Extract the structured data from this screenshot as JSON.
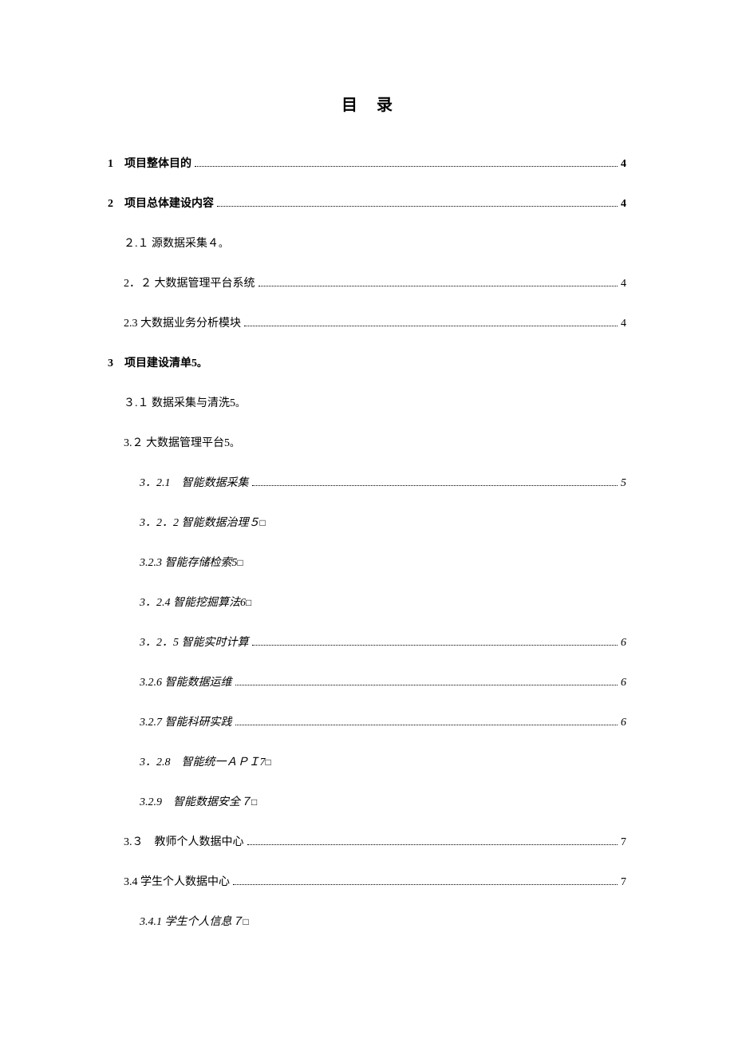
{
  "title": "目录",
  "entries": [
    {
      "level": 1,
      "bold": true,
      "italic": false,
      "label": "1　项目整体目的 ",
      "page": " 4",
      "leader": true
    },
    {
      "level": 1,
      "bold": true,
      "italic": false,
      "label": "2　项目总体建设内容 ",
      "page": "4",
      "leader": true
    },
    {
      "level": 2,
      "bold": false,
      "italic": false,
      "label": "２.１  源数据采集４",
      "suffix": "。",
      "page": "",
      "leader": false
    },
    {
      "level": 2,
      "bold": false,
      "italic": false,
      "label": "2．２ 大数据管理平台系统",
      "page": "4",
      "leader": true
    },
    {
      "level": 2,
      "bold": false,
      "italic": false,
      "label": "2.3 大数据业务分析模块",
      "page": "4",
      "leader": true
    },
    {
      "level": 1,
      "bold": true,
      "italic": false,
      "label": "3　项目建设清单5",
      "suffix": "。",
      "page": "",
      "leader": false
    },
    {
      "level": 2,
      "bold": false,
      "italic": false,
      "label": "３.１  数据采集与清洗5",
      "suffix": "。",
      "page": "",
      "leader": false
    },
    {
      "level": 2,
      "bold": false,
      "italic": false,
      "label": "3.２  大数据管理平台5",
      "suffix": "。",
      "page": "",
      "leader": false
    },
    {
      "level": 3,
      "bold": false,
      "italic": true,
      "label": "3．2.1　智能数据采集",
      "page": "5",
      "leader": true
    },
    {
      "level": 3,
      "bold": false,
      "italic": true,
      "label": "3．2．2  智能数据治理５",
      "suffix": "□",
      "page": "",
      "leader": false
    },
    {
      "level": 3,
      "bold": false,
      "italic": true,
      "label": "3.2.3  智能存储检索5",
      "suffix": "□",
      "page": "",
      "leader": false
    },
    {
      "level": 3,
      "bold": false,
      "italic": true,
      "label": "3．2.4  智能挖掘算法6",
      "suffix": "□",
      "page": "",
      "leader": false
    },
    {
      "level": 3,
      "bold": false,
      "italic": true,
      "label": "3．2．5  智能实时计算",
      "page": "6",
      "leader": true
    },
    {
      "level": 3,
      "bold": false,
      "italic": true,
      "label": "3.2.6  智能数据运维",
      "page": " 6",
      "leader": true
    },
    {
      "level": 3,
      "bold": false,
      "italic": true,
      "label": "3.2.7  智能科研实践",
      "page": "6",
      "leader": true
    },
    {
      "level": 3,
      "bold": false,
      "italic": true,
      "label": "3．2.8　智能统一ＡＰＩ7",
      "suffix": "□",
      "page": "",
      "leader": false
    },
    {
      "level": 3,
      "bold": false,
      "italic": true,
      "label": "3.2.9　智能数据安全７",
      "suffix": "□",
      "page": "",
      "leader": false
    },
    {
      "level": 2,
      "bold": false,
      "italic": false,
      "label": "3.３　教师个人数据中心 ",
      "page": "7",
      "leader": true
    },
    {
      "level": 2,
      "bold": false,
      "italic": false,
      "label": "3.4 学生个人数据中心",
      "page": "7",
      "leader": true
    },
    {
      "level": 3,
      "bold": false,
      "italic": true,
      "label": "3.4.1  学生个人信息７",
      "suffix": "□",
      "page": "",
      "leader": false
    }
  ]
}
